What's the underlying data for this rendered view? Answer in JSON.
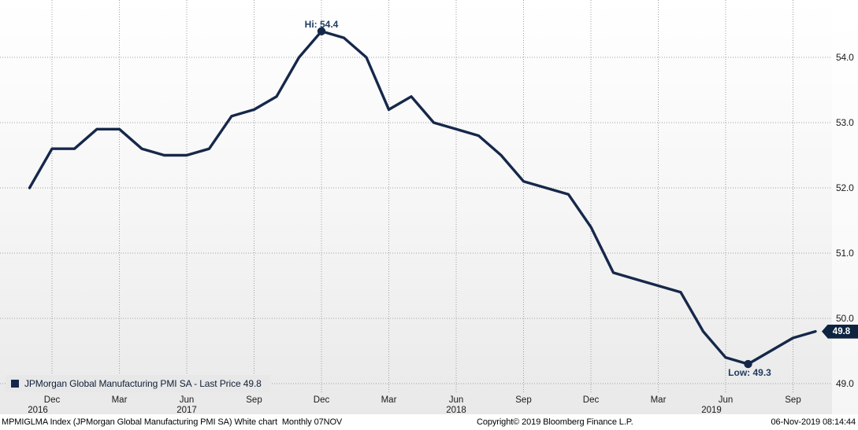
{
  "chart_data": {
    "type": "line",
    "title": "JPMorgan Global Manufacturing PMI SA - Last Price",
    "x": [
      "Nov 2016",
      "Dec 2016",
      "Jan 2017",
      "Feb 2017",
      "Mar 2017",
      "Apr 2017",
      "May 2017",
      "Jun 2017",
      "Jul 2017",
      "Aug 2017",
      "Sep 2017",
      "Oct 2017",
      "Nov 2017",
      "Dec 2017",
      "Jan 2018",
      "Feb 2018",
      "Mar 2018",
      "Apr 2018",
      "May 2018",
      "Jun 2018",
      "Jul 2018",
      "Aug 2018",
      "Sep 2018",
      "Oct 2018",
      "Nov 2018",
      "Dec 2018",
      "Jan 2019",
      "Feb 2019",
      "Mar 2019",
      "Apr 2019",
      "May 2019",
      "Jun 2019",
      "Jul 2019",
      "Aug 2019",
      "Sep 2019",
      "Oct 2019"
    ],
    "series": [
      {
        "name": "JPMorgan Global Manufacturing PMI SA - Last Price",
        "color": "#16284a",
        "values": [
          52.0,
          52.6,
          52.6,
          52.9,
          52.9,
          52.6,
          52.5,
          52.5,
          52.6,
          53.1,
          53.2,
          53.4,
          54.0,
          54.4,
          54.3,
          54.0,
          53.2,
          53.4,
          53.0,
          52.9,
          52.8,
          52.5,
          52.1,
          52.0,
          51.9,
          51.4,
          50.7,
          50.6,
          50.5,
          50.4,
          49.8,
          49.4,
          49.3,
          49.5,
          49.7,
          49.8
        ]
      }
    ],
    "ylim": [
      48.9,
      54.9
    ],
    "y_ticks": [
      54.0,
      53.0,
      52.0,
      51.0,
      50.0,
      49.0
    ],
    "y_tick_labels": [
      "54.0",
      "53.0",
      "52.0",
      "51.0",
      "50.0",
      "49.0"
    ],
    "x_tick_labels": [
      "Dec",
      "Mar",
      "Jun",
      "Sep",
      "Dec",
      "Mar",
      "Jun",
      "Sep",
      "Dec",
      "Mar",
      "Jun",
      "Sep"
    ],
    "x_tick_month_indices": [
      1,
      4,
      7,
      10,
      13,
      16,
      19,
      22,
      25,
      28,
      31,
      34
    ],
    "years": [
      "2016",
      "2017",
      "2018",
      "2019"
    ],
    "grid": "dotted",
    "legend_position": "bottom-left",
    "annotations": {
      "high": {
        "label": "Hi: 54.4",
        "value": 54.4,
        "month": "Dec 2017",
        "month_index": 13
      },
      "low": {
        "label": "Low: 49.3",
        "value": 49.3,
        "month": "Jul 2019",
        "month_index": 32
      }
    },
    "last_price": {
      "label": "49.8",
      "value": 49.8
    }
  },
  "legend": {
    "label": "JPMorgan Global Manufacturing PMI SA - Last Price 49.8",
    "swatch_color": "#16284a"
  },
  "statusbar": {
    "left": "MPMIGLMA Index (JPMorgan Global Manufacturing PMI SA) White chart  Monthly 07NOV",
    "copyright": "Copyright© 2019 Bloomberg Finance L.P.",
    "timestamp": "06-Nov-2019 08:14:44"
  },
  "colors": {
    "line": "#16284a",
    "grid": "#a0a0a0",
    "annotation_text": "#1e3a5f",
    "badge_bg": "#0d2340",
    "badge_text": "#ffffff",
    "legend_bg": "#e8e8e8",
    "background_top": "#ffffff",
    "background_bottom": "#e9e9e9",
    "statusbar_bg": "#ffffff",
    "tick_text": "#1a1a1a"
  }
}
